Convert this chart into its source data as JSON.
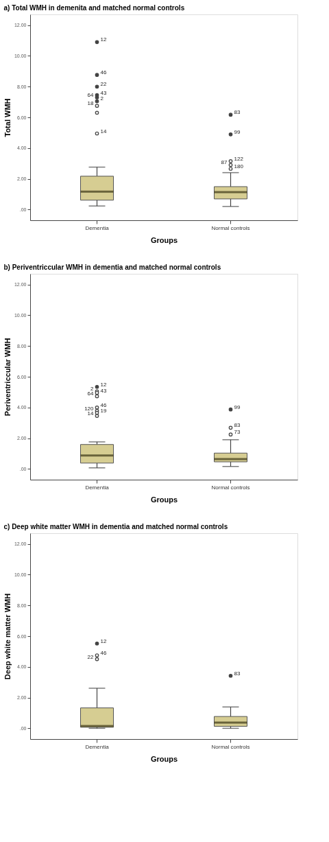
{
  "chart_data": [
    {
      "type": "box",
      "title": "a) Total WMH in demenita and matched normal controls",
      "xlabel": "Groups",
      "ylabel": "Total WMH",
      "categories": [
        "Dementia",
        "Normal controls"
      ],
      "colors": [
        "#d6cd92",
        "#d6cd92"
      ],
      "boxes": [
        {
          "low": 0.23,
          "q1": 0.61,
          "median": 1.17,
          "q3": 2.17,
          "high": 2.76
        },
        {
          "low": 0.2,
          "q1": 0.69,
          "median": 1.13,
          "q3": 1.49,
          "high": 2.4
        }
      ],
      "series": [
        {
          "type": "scatter",
          "color": "#444444",
          "x": [
            "Dementia",
            "Dementia",
            "Dementia",
            "Dementia",
            "Dementia",
            "Dementia",
            "Dementia",
            "Dementia",
            "Dementia",
            "Normal controls",
            "Normal controls",
            "Normal controls",
            "Normal controls",
            "Normal controls"
          ],
          "values": [
            10.9,
            8.76,
            8.0,
            7.45,
            7.3,
            7.05,
            6.75,
            6.3,
            4.95,
            6.17,
            4.89,
            3.15,
            2.9,
            2.65
          ]
        }
      ],
      "ylim": [
        -0.7,
        12.7
      ],
      "yticks": [
        {
          "value": 0,
          "label": ".00"
        },
        {
          "value": 2,
          "label": "2.00"
        },
        {
          "value": 4,
          "label": "4.00"
        },
        {
          "value": 6,
          "label": "6.00"
        },
        {
          "value": 8,
          "label": "8.00"
        },
        {
          "value": 10,
          "label": "10.00"
        },
        {
          "value": 12,
          "label": "12.00"
        }
      ],
      "annotations": [
        {
          "text": "12",
          "x": "Dementia",
          "y": 10.9
        },
        {
          "text": "46",
          "x": "Dementia",
          "y": 8.76
        },
        {
          "text": "22",
          "x": "Dementia",
          "y": 8.0
        },
        {
          "text": "43",
          "x": "Dementia",
          "y": 7.45
        },
        {
          "text": "64",
          "x": "Dementia",
          "y": 7.3
        },
        {
          "text": "2",
          "x": "Dementia",
          "y": 7.05
        },
        {
          "text": "18",
          "x": "Dementia",
          "y": 6.75
        },
        {
          "text": "14",
          "x": "Dementia",
          "y": 4.95
        },
        {
          "text": "83",
          "x": "Normal controls",
          "y": 6.17
        },
        {
          "text": "99",
          "x": "Normal controls",
          "y": 4.89
        },
        {
          "text": "122",
          "x": "Normal controls",
          "y": 3.15
        },
        {
          "text": "87",
          "x": "Normal controls",
          "y": 2.9
        },
        {
          "text": "180",
          "x": "Normal controls",
          "y": 2.65
        }
      ]
    },
    {
      "type": "box",
      "title": "b) Periventriccular WMH in dementia and matched normal controls",
      "xlabel": "Groups",
      "ylabel": "Periventriccular WMH",
      "categories": [
        "Dementia",
        "Normal controls"
      ],
      "colors": [
        "#d6cd92",
        "#d6cd92"
      ],
      "boxes": [
        {
          "low": 0.07,
          "q1": 0.38,
          "median": 0.88,
          "q3": 1.59,
          "high": 1.76
        },
        {
          "low": 0.16,
          "q1": 0.46,
          "median": 0.64,
          "q3": 1.03,
          "high": 1.9
        }
      ],
      "series": [
        {
          "type": "scatter",
          "color": "#444444",
          "x": [
            "Dementia",
            "Dementia",
            "Dementia",
            "Dementia",
            "Dementia",
            "Dementia",
            "Dementia",
            "Dementia",
            "Normal controls",
            "Normal controls",
            "Normal controls"
          ],
          "values": [
            5.34,
            5.05,
            4.95,
            4.73,
            4.0,
            3.78,
            3.65,
            3.45,
            3.87,
            2.68,
            2.24
          ]
        }
      ],
      "ylim": [
        -0.7,
        12.7
      ],
      "yticks": [
        {
          "value": 0,
          "label": ".00"
        },
        {
          "value": 2,
          "label": "2.00"
        },
        {
          "value": 4,
          "label": "4.00"
        },
        {
          "value": 6,
          "label": "6.00"
        },
        {
          "value": 8,
          "label": "8.00"
        },
        {
          "value": 10,
          "label": "10.00"
        },
        {
          "value": 12,
          "label": "12.00"
        }
      ],
      "annotations": [
        {
          "text": "12",
          "x": "Dementia",
          "y": 5.34
        },
        {
          "text": "2",
          "x": "Dementia",
          "y": 5.05
        },
        {
          "text": "43",
          "x": "Dementia",
          "y": 4.95
        },
        {
          "text": "64",
          "x": "Dementia",
          "y": 4.73
        },
        {
          "text": "46",
          "x": "Dementia",
          "y": 4.0
        },
        {
          "text": "120",
          "x": "Dementia",
          "y": 3.78
        },
        {
          "text": "19",
          "x": "Dementia",
          "y": 3.65
        },
        {
          "text": "14",
          "x": "Dementia",
          "y": 3.45
        },
        {
          "text": "99",
          "x": "Normal controls",
          "y": 3.87
        },
        {
          "text": "83",
          "x": "Normal controls",
          "y": 2.68
        },
        {
          "text": "73",
          "x": "Normal controls",
          "y": 2.24
        }
      ]
    },
    {
      "type": "box",
      "title": "c) Deep white matter WMH in dementia and matched normal controls",
      "xlabel": "Groups",
      "ylabel": "Deep white matter WMH",
      "categories": [
        "Dementia",
        "Normal controls"
      ],
      "colors": [
        "#d6cd92",
        "#d6cd92"
      ],
      "boxes": [
        {
          "low": 0.0,
          "q1": 0.07,
          "median": 0.15,
          "q3": 1.33,
          "high": 2.61
        },
        {
          "low": 0.0,
          "q1": 0.13,
          "median": 0.37,
          "q3": 0.77,
          "high": 1.39
        }
      ],
      "series": [
        {
          "type": "scatter",
          "color": "#444444",
          "x": [
            "Dementia",
            "Dementia",
            "Dementia",
            "Normal controls"
          ],
          "values": [
            5.52,
            4.75,
            4.5,
            3.42
          ]
        }
      ],
      "ylim": [
        -0.7,
        12.7
      ],
      "yticks": [
        {
          "value": 0,
          "label": ".00"
        },
        {
          "value": 2,
          "label": "2.00"
        },
        {
          "value": 4,
          "label": "4.00"
        },
        {
          "value": 6,
          "label": "6.00"
        },
        {
          "value": 8,
          "label": "8.00"
        },
        {
          "value": 10,
          "label": "10.00"
        },
        {
          "value": 12,
          "label": "12.00"
        }
      ],
      "annotations": [
        {
          "text": "12",
          "x": "Dementia",
          "y": 5.52
        },
        {
          "text": "46",
          "x": "Dementia",
          "y": 4.75
        },
        {
          "text": "22",
          "x": "Dementia",
          "y": 4.5
        },
        {
          "text": "83",
          "x": "Normal controls",
          "y": 3.42
        }
      ]
    }
  ]
}
